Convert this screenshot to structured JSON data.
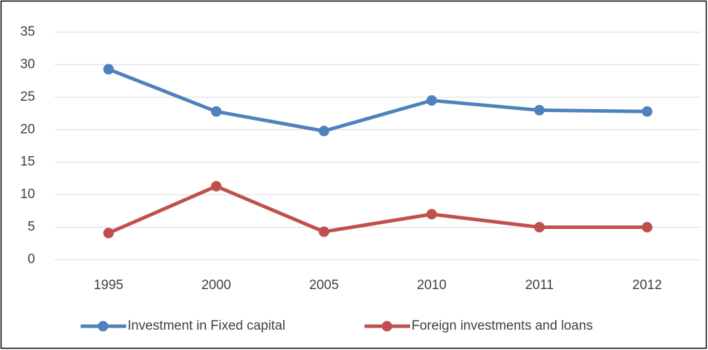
{
  "chart_data": {
    "type": "line",
    "categories": [
      "1995",
      "2000",
      "2005",
      "2010",
      "2011",
      "2012"
    ],
    "series": [
      {
        "name": "Investment in Fixed capital",
        "color": "#4f81bd",
        "values": [
          29.3,
          22.8,
          19.8,
          24.5,
          23.0,
          22.8
        ]
      },
      {
        "name": "Foreign investments and loans",
        "color": "#c0504d",
        "values": [
          4.1,
          11.3,
          4.3,
          7.0,
          5.0,
          5.0
        ]
      }
    ],
    "ylim": [
      0,
      35
    ],
    "yticks": [
      0,
      5,
      10,
      15,
      20,
      25,
      30,
      35
    ],
    "grid": true,
    "legend": "bottom"
  }
}
